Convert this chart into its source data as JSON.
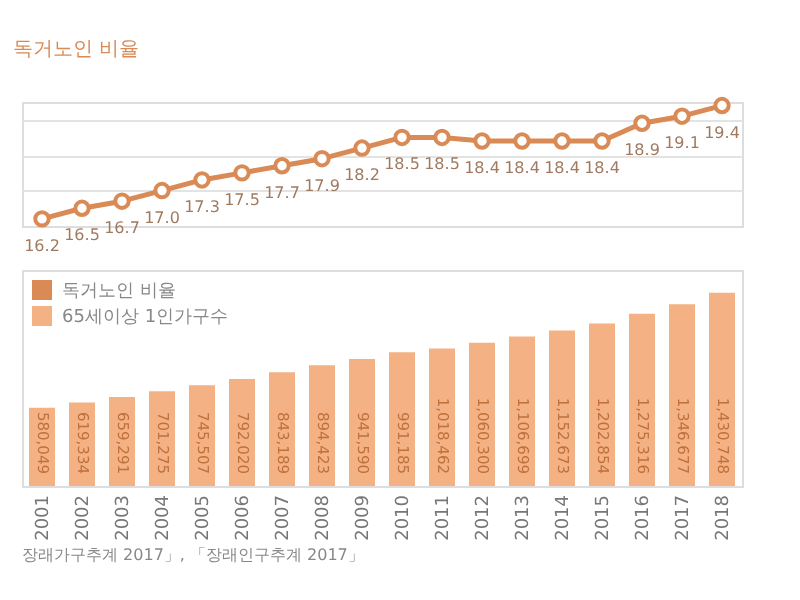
{
  "chart_data": [
    {
      "type": "line",
      "ylabel": "독거노인 비율",
      "categories": [
        "2001",
        "2002",
        "2003",
        "2004",
        "2005",
        "2006",
        "2007",
        "2008",
        "2009",
        "2010",
        "2011",
        "2012",
        "2013",
        "2014",
        "2015",
        "2016",
        "2017",
        "2018"
      ],
      "series": [
        {
          "name": "독거노인 비율",
          "color": "#d98a55",
          "values": [
            16.2,
            16.5,
            16.7,
            17.0,
            17.3,
            17.5,
            17.7,
            17.9,
            18.2,
            18.5,
            18.5,
            18.4,
            18.4,
            18.4,
            18.4,
            18.9,
            19.1,
            19.4
          ],
          "value_labels": [
            "16.2",
            "16.5",
            "16.7",
            "17.0",
            "17.3",
            "17.5",
            "17.7",
            "17.9",
            "18.2",
            "18.5",
            "18.5",
            "18.4",
            "18.4",
            "18.4",
            "18.4",
            "18.9",
            "19.1",
            "19.4"
          ]
        }
      ],
      "tick_labels": false,
      "grid": "y",
      "marker": "circle"
    },
    {
      "type": "bar",
      "categories": [
        "2001",
        "2002",
        "2003",
        "2004",
        "2005",
        "2006",
        "2007",
        "2008",
        "2009",
        "2010",
        "2011",
        "2012",
        "2013",
        "2014",
        "2015",
        "2016",
        "2017",
        "2018"
      ],
      "series": [
        {
          "name": "65세이상 1인가구수",
          "color": "#f4b183",
          "values": [
            580049,
            619334,
            659291,
            701275,
            745507,
            792020,
            843189,
            894423,
            941590,
            991185,
            1018462,
            1060300,
            1106699,
            1152673,
            1202854,
            1275316,
            1346677,
            1430748
          ],
          "value_labels": [
            "580,049",
            "619,334",
            "659,291",
            "701,275",
            "745,507",
            "792,020",
            "843,189",
            "894,423",
            "941,590",
            "991,185",
            "1,018,462",
            "1,060,300",
            "1,106,699",
            "1,152,673",
            "1,202,854",
            "1,275,316",
            "1,346,677",
            "1,430,748"
          ]
        }
      ],
      "tick_labels": "x",
      "legend": "top left",
      "annotations": [
        "장래가구추계 2017」, 「장래인구추계 2017」"
      ]
    }
  ]
}
